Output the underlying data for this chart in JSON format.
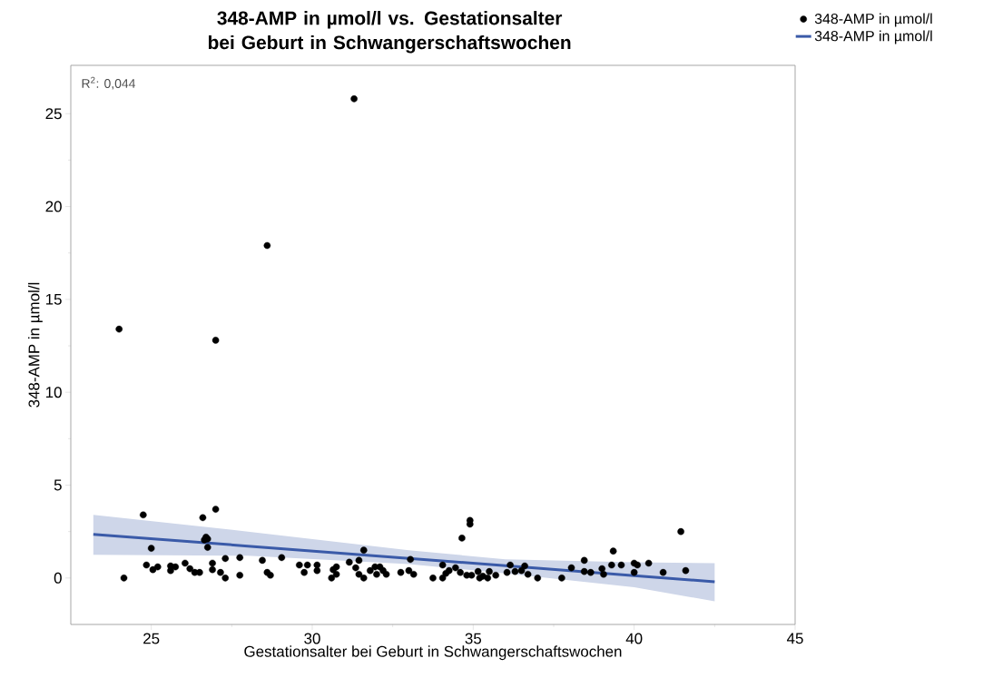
{
  "chart_data": {
    "type": "scatter",
    "title": "348-AMP in µmol/l vs. Gestationsalter bei Geburt in Schwangerschaftswochen",
    "xlabel": "Gestationsalter bei Geburt in Schwangerschaftswochen",
    "ylabel": "348-AMP in µmol/l",
    "annotations": [
      "R$^{2}$: 0,044"
    ],
    "xlim": [
      22.5,
      45
    ],
    "xticks": [
      25,
      30,
      35,
      40,
      45
    ],
    "ylim": [
      -2.5,
      27.6
    ],
    "yticks": [
      0,
      5,
      10,
      15,
      20,
      25
    ],
    "grid": false,
    "legend": "top right",
    "series": [
      {
        "name": "348-AMP in µmol/l",
        "type": "scatter",
        "color": "#000000",
        "marker": "circle",
        "x": [
          24.0,
          24.15,
          24.75,
          24.85,
          25.0,
          25.05,
          25.2,
          25.6,
          25.6,
          25.75,
          26.05,
          26.2,
          26.35,
          26.5,
          26.6,
          26.65,
          26.75,
          26.75,
          26.7,
          26.9,
          26.9,
          27.0,
          27.0,
          27.15,
          27.3,
          27.3,
          27.75,
          27.75,
          28.45,
          28.6,
          28.6,
          28.7,
          29.05,
          29.6,
          29.75,
          29.85,
          30.15,
          30.15,
          30.6,
          30.65,
          30.75,
          30.75,
          31.15,
          31.3,
          31.35,
          31.45,
          31.45,
          31.6,
          31.6,
          31.8,
          31.95,
          32.0,
          32.1,
          32.2,
          32.3,
          32.75,
          33.0,
          33.05,
          33.15,
          33.75,
          34.05,
          34.15,
          34.05,
          34.25,
          34.45,
          34.6,
          34.65,
          34.8,
          34.9,
          34.9,
          34.95,
          35.15,
          35.2,
          35.3,
          35.45,
          35.5,
          35.7,
          36.05,
          36.15,
          36.3,
          36.5,
          36.6,
          36.7,
          37.0,
          37.75,
          38.05,
          38.45,
          38.45,
          38.65,
          39.0,
          39.05,
          39.35,
          39.3,
          39.6,
          40.0,
          40.0,
          40.1,
          40.45,
          40.9,
          41.45,
          41.6
        ],
        "values": [
          13.4,
          0.0,
          3.4,
          0.7,
          1.6,
          0.45,
          0.6,
          0.65,
          0.4,
          0.6,
          0.8,
          0.5,
          0.3,
          0.3,
          3.25,
          2.05,
          2.1,
          1.65,
          2.2,
          0.8,
          0.45,
          12.8,
          3.7,
          0.3,
          0.0,
          1.05,
          1.1,
          0.15,
          0.95,
          17.9,
          0.3,
          0.15,
          1.1,
          0.7,
          0.3,
          0.7,
          0.4,
          0.7,
          0.0,
          0.45,
          0.6,
          0.2,
          0.85,
          25.8,
          0.55,
          0.95,
          0.2,
          1.5,
          0.0,
          0.4,
          0.6,
          0.2,
          0.6,
          0.4,
          0.2,
          0.3,
          0.4,
          1.0,
          0.2,
          0.0,
          0.7,
          0.25,
          0.0,
          0.4,
          0.55,
          0.3,
          2.15,
          0.15,
          3.1,
          2.9,
          0.15,
          0.35,
          0.0,
          0.1,
          0.0,
          0.35,
          0.15,
          0.3,
          0.7,
          0.35,
          0.4,
          0.65,
          0.2,
          0.0,
          0.0,
          0.55,
          0.95,
          0.35,
          0.3,
          0.5,
          0.2,
          1.45,
          0.7,
          0.7,
          0.8,
          0.3,
          0.7,
          0.8,
          0.3,
          2.5,
          0.4
        ]
      },
      {
        "name": "348-AMP in µmol/l",
        "type": "line",
        "color": "#3a5aa8",
        "marker": "none",
        "x": [
          23.2,
          28,
          33,
          36,
          40,
          42.5
        ],
        "values": [
          2.35,
          1.72,
          1.06,
          0.66,
          0.13,
          -0.2
        ],
        "lower": [
          1.25,
          1.2,
          0.75,
          0.25,
          -0.5,
          -1.25
        ],
        "upper": [
          3.4,
          2.5,
          1.5,
          1.0,
          0.85,
          0.8
        ]
      }
    ]
  }
}
